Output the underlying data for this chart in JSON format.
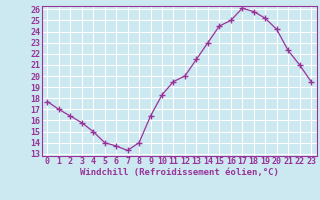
{
  "x": [
    0,
    1,
    2,
    3,
    4,
    5,
    6,
    7,
    8,
    9,
    10,
    11,
    12,
    13,
    14,
    15,
    16,
    17,
    18,
    19,
    20,
    21,
    22,
    23
  ],
  "y": [
    17.7,
    17.0,
    16.4,
    15.8,
    15.0,
    14.0,
    13.7,
    13.3,
    14.0,
    16.4,
    18.3,
    19.5,
    20.0,
    21.5,
    23.0,
    24.5,
    25.0,
    26.1,
    25.8,
    25.2,
    24.2,
    22.3,
    21.0,
    19.5
  ],
  "line_color": "#993399",
  "marker": "+",
  "markersize": 4,
  "linewidth": 0.9,
  "xlabel": "Windchill (Refroidissement éolien,°C)",
  "xlabel_fontsize": 6.5,
  "bg_color": "#cce8f0",
  "grid_color": "#ffffff",
  "tick_label_color": "#993399",
  "axis_label_color": "#993399",
  "ylim": [
    13,
    26
  ],
  "xlim": [
    -0.5,
    23.5
  ],
  "yticks": [
    13,
    14,
    15,
    16,
    17,
    18,
    19,
    20,
    21,
    22,
    23,
    24,
    25,
    26
  ],
  "xticks": [
    0,
    1,
    2,
    3,
    4,
    5,
    6,
    7,
    8,
    9,
    10,
    11,
    12,
    13,
    14,
    15,
    16,
    17,
    18,
    19,
    20,
    21,
    22,
    23
  ],
  "tick_fontsize": 6.0
}
